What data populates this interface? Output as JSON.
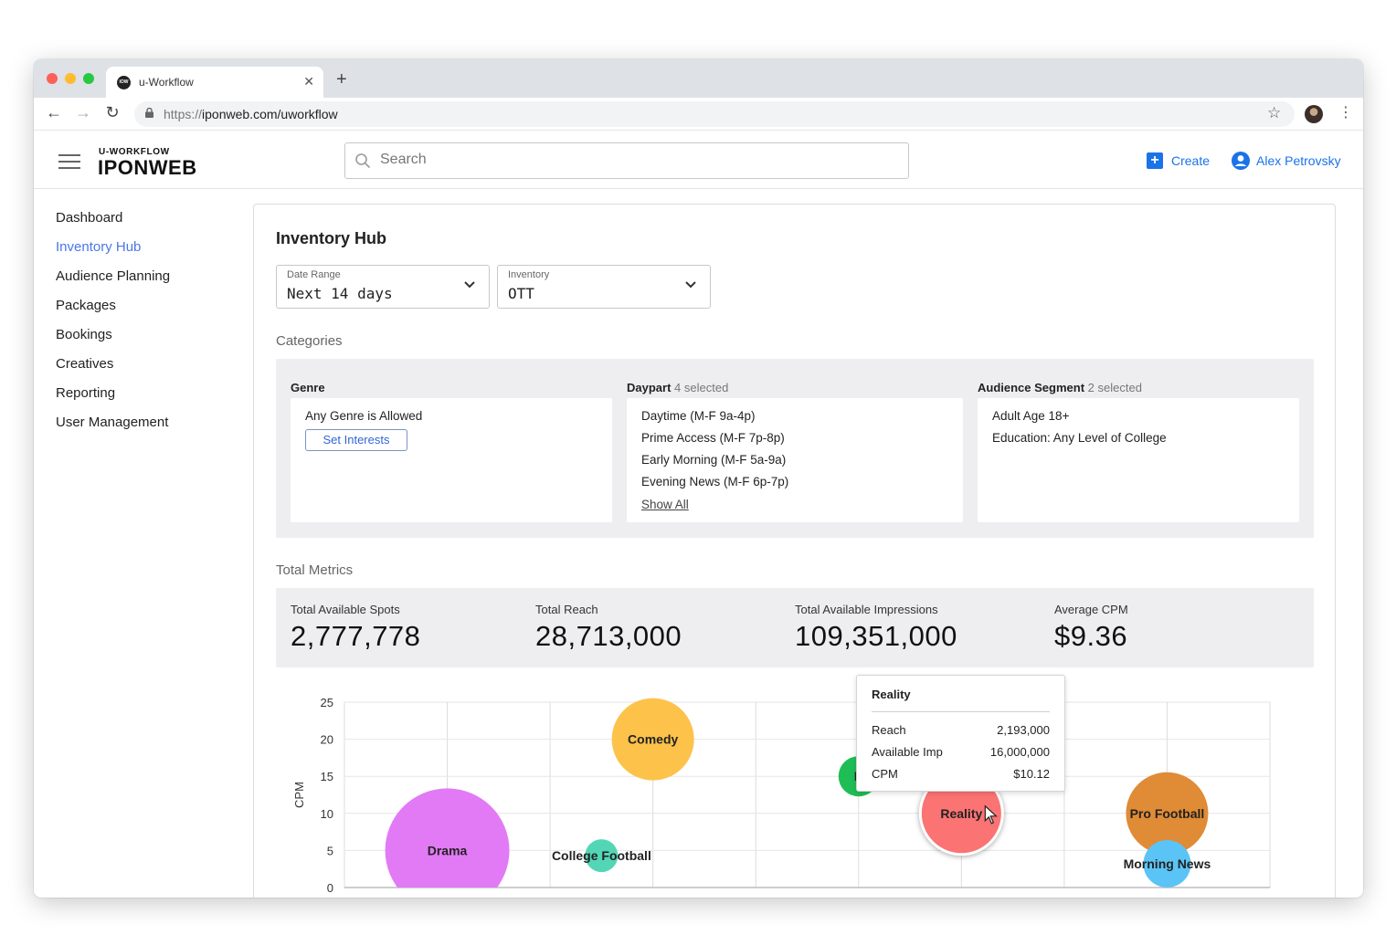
{
  "browser": {
    "tab_title": "u-Workflow",
    "favicon_text": "IOW",
    "url_protocol": "https://",
    "url_host": "iponweb.com/uworkflow"
  },
  "header": {
    "brand_small": "U-WORKFLOW",
    "brand_big": "IPONWEB",
    "search_placeholder": "Search",
    "create_label": "Create",
    "user_name": "Alex Petrovsky"
  },
  "sidebar": {
    "items": [
      {
        "label": "Dashboard",
        "active": false
      },
      {
        "label": "Inventory Hub",
        "active": true
      },
      {
        "label": "Audience Planning",
        "active": false
      },
      {
        "label": "Packages",
        "active": false
      },
      {
        "label": "Bookings",
        "active": false
      },
      {
        "label": "Creatives",
        "active": false
      },
      {
        "label": "Reporting",
        "active": false
      },
      {
        "label": "User Management",
        "active": false
      }
    ]
  },
  "main": {
    "title": "Inventory Hub",
    "date_range": {
      "label": "Date Range",
      "value": "Next 14 days"
    },
    "inventory": {
      "label": "Inventory",
      "value": "OTT"
    },
    "categories_title": "Categories",
    "genre": {
      "title": "Genre",
      "value": "Any Genre is Allowed",
      "button": "Set Interests"
    },
    "daypart": {
      "title": "Daypart",
      "selected": "4 selected",
      "items": [
        "Daytime (M-F 9a-4p)",
        "Prime Access (M-F 7p-8p)",
        "Early Morning (M-F 5a-9a)",
        "Evening News (M-F 6p-7p)"
      ],
      "show_all": "Show All"
    },
    "audience": {
      "title": "Audience Segment",
      "selected": "2 selected",
      "items": [
        "Adult Age 18+",
        "Education: Any Level of College"
      ]
    },
    "metrics_title": "Total Metrics",
    "metrics": [
      {
        "label": "Total Available Spots",
        "value": "2,777,778"
      },
      {
        "label": "Total Reach",
        "value": "28,713,000"
      },
      {
        "label": "Total Available Impressions",
        "value": "109,351,000"
      },
      {
        "label": "Average CPM",
        "value": "$9.36"
      }
    ],
    "tooltip": {
      "title": "Reality",
      "rows": [
        {
          "label": "Reach",
          "value": "2,193,000"
        },
        {
          "label": "Available Imp",
          "value": "16,000,000"
        },
        {
          "label": "CPM",
          "value": "$10.12"
        }
      ]
    }
  },
  "chart_data": {
    "type": "scatter",
    "ylabel": "CPM",
    "ylim": [
      0,
      25
    ],
    "yticks": [
      0,
      5,
      10,
      15,
      20,
      25
    ],
    "grid": true,
    "series": [
      {
        "name": "Drama",
        "x": 1,
        "y": 5,
        "size": 68,
        "color": "#e27af6",
        "label": "Drama"
      },
      {
        "name": "College Football",
        "x": 2.5,
        "y": 4.3,
        "size": 18,
        "color": "#53d6b6",
        "label": "College Football"
      },
      {
        "name": "Comedy",
        "x": 3,
        "y": 20,
        "size": 45,
        "color": "#fdc24a",
        "label": "Comedy"
      },
      {
        "name": "K",
        "x": 5,
        "y": 15,
        "size": 22,
        "color": "#1fbd56",
        "label": "K"
      },
      {
        "name": "Reality",
        "x": 6,
        "y": 10,
        "size": 45,
        "color": "#fb7373",
        "label": "Reality"
      },
      {
        "name": "Pro Football",
        "x": 8,
        "y": 10,
        "size": 45,
        "color": "#e08b35",
        "label": "Pro Football"
      },
      {
        "name": "Morning News",
        "x": 8,
        "y": 3.2,
        "size": 26,
        "color": "#5bc4f6",
        "label": "Morning News"
      }
    ]
  },
  "colors": {
    "accent": "#1a73e8",
    "active_nav": "#4a76e8",
    "panel_bg": "#eeeef1"
  }
}
